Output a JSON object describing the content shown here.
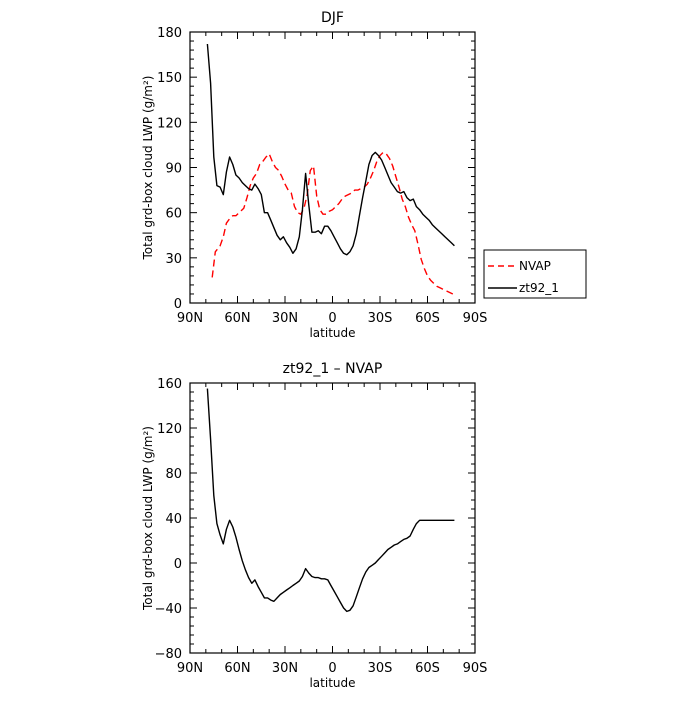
{
  "chart_data": [
    {
      "type": "line",
      "title": "DJF",
      "xlabel": "latitude",
      "ylabel": "Total grd-box cloud LWP (g/m²)",
      "xlim": [
        90,
        -90
      ],
      "ylim": [
        0,
        180
      ],
      "x_ticks": [
        90,
        60,
        30,
        0,
        -30,
        -60,
        -90
      ],
      "x_tick_labels": [
        "90N",
        "60N",
        "30N",
        "0",
        "30S",
        "60S",
        "90S"
      ],
      "y_ticks": [
        0,
        30,
        60,
        90,
        120,
        150,
        180
      ],
      "y_tick_labels": [
        "0",
        "30",
        "60",
        "90",
        "120",
        "150",
        "180"
      ],
      "legend_position": "right",
      "series": [
        {
          "name": "NVAP",
          "color": "#ff0000",
          "style": "dashed",
          "x": [
            76,
            74,
            71,
            69,
            67,
            65,
            63,
            61,
            59,
            56,
            54,
            52,
            50,
            48,
            46,
            44,
            42,
            40,
            38,
            36,
            34,
            32,
            30,
            28,
            26,
            24,
            22,
            20,
            18,
            16,
            14,
            12,
            10,
            8,
            6,
            4,
            2,
            0,
            -2,
            -4,
            -6,
            -8,
            -10,
            -12,
            -14,
            -16,
            -18,
            -20,
            -22,
            -24,
            -26,
            -28,
            -30,
            -32,
            -34,
            -36,
            -38,
            -40,
            -42,
            -44,
            -46,
            -48,
            -50,
            -52,
            -54,
            -56,
            -58,
            -60,
            -62,
            -64,
            -66,
            -68,
            -70,
            -72,
            -74,
            -76
          ],
          "values": [
            17,
            34,
            38,
            44,
            53,
            56,
            58,
            58,
            60,
            63,
            70,
            78,
            83,
            86,
            92,
            94,
            97,
            99,
            94,
            90,
            88,
            84,
            79,
            75,
            73,
            64,
            60,
            59,
            63,
            72,
            88,
            91,
            71,
            62,
            59,
            59,
            61,
            62,
            64,
            66,
            69,
            71,
            72,
            73,
            75,
            75,
            76,
            77,
            79,
            83,
            88,
            94,
            98,
            100,
            99,
            96,
            91,
            84,
            77,
            69,
            64,
            57,
            52,
            48,
            39,
            29,
            23,
            18,
            15,
            13,
            11,
            10,
            9,
            8,
            7,
            6
          ]
        },
        {
          "name": "zt92_1",
          "color": "#000000",
          "style": "solid",
          "x": [
            79,
            77,
            75,
            73,
            71,
            69,
            67,
            65,
            63,
            61,
            59,
            57,
            55,
            53,
            51,
            49,
            47,
            45,
            43,
            41,
            39,
            37,
            35,
            33,
            31,
            29,
            27,
            25,
            23,
            21,
            19,
            17,
            15,
            13,
            11,
            9,
            7,
            5,
            3,
            1,
            -1,
            -3,
            -5,
            -7,
            -9,
            -11,
            -13,
            -15,
            -17,
            -19,
            -21,
            -23,
            -25,
            -27,
            -29,
            -31,
            -33,
            -35,
            -37,
            -39,
            -41,
            -43,
            -45,
            -47,
            -49,
            -51,
            -53,
            -55,
            -57,
            -59,
            -61,
            -63,
            -65,
            -67,
            -69,
            -71,
            -73,
            -75,
            -77
          ],
          "values": [
            172,
            146,
            97,
            78,
            77,
            72,
            87,
            97,
            92,
            85,
            83,
            80,
            78,
            76,
            75,
            79,
            76,
            72,
            60,
            60,
            55,
            50,
            45,
            42,
            44,
            40,
            37,
            33,
            36,
            44,
            62,
            86,
            65,
            47,
            47,
            48,
            46,
            51,
            51,
            48,
            44,
            40,
            36,
            33,
            32,
            34,
            38,
            46,
            58,
            70,
            81,
            92,
            98,
            100,
            98,
            95,
            90,
            85,
            80,
            77,
            74,
            73,
            74,
            70,
            68,
            69,
            64,
            62,
            59,
            57,
            55,
            52,
            50,
            48,
            46,
            44,
            42,
            40,
            38
          ]
        }
      ]
    },
    {
      "type": "line",
      "title": "zt92_1 – NVAP",
      "xlabel": "latitude",
      "ylabel": "Total grd-box cloud LWP (g/m²)",
      "xlim": [
        90,
        -90
      ],
      "ylim": [
        -80,
        160
      ],
      "x_ticks": [
        90,
        60,
        30,
        0,
        -30,
        -60,
        -90
      ],
      "x_tick_labels": [
        "90N",
        "60N",
        "30N",
        "0",
        "30S",
        "60S",
        "90S"
      ],
      "y_ticks": [
        -80,
        -40,
        0,
        40,
        80,
        120,
        160
      ],
      "y_tick_labels": [
        "−80",
        "−40",
        "0",
        "40",
        "80",
        "120",
        "160"
      ],
      "series": [
        {
          "name": "",
          "color": "#000000",
          "style": "solid",
          "x": [
            79,
            77,
            75,
            73,
            71,
            69,
            67,
            65,
            63,
            61,
            59,
            57,
            55,
            53,
            51,
            49,
            47,
            45,
            43,
            41,
            39,
            37,
            35,
            33,
            31,
            29,
            27,
            25,
            23,
            21,
            19,
            17,
            15,
            13,
            11,
            9,
            7,
            5,
            3,
            1,
            -1,
            -3,
            -5,
            -7,
            -9,
            -11,
            -13,
            -15,
            -17,
            -19,
            -21,
            -23,
            -25,
            -27,
            -29,
            -31,
            -33,
            -35,
            -37,
            -39,
            -41,
            -43,
            -45,
            -47,
            -49,
            -51,
            -53,
            -55,
            -57,
            -59,
            -61,
            -63,
            -65,
            -67,
            -69,
            -71,
            -73,
            -75,
            -77
          ],
          "values": [
            155,
            110,
            60,
            35,
            25,
            17,
            30,
            38,
            32,
            23,
            12,
            2,
            -6,
            -13,
            -18,
            -15,
            -21,
            -26,
            -31,
            -31,
            -33,
            -34,
            -31,
            -28,
            -26,
            -24,
            -22,
            -20,
            -18,
            -16,
            -12,
            -5,
            -9,
            -12,
            -13,
            -13,
            -14,
            -14,
            -15,
            -20,
            -25,
            -30,
            -35,
            -40,
            -43,
            -42,
            -38,
            -30,
            -22,
            -14,
            -8,
            -4,
            -2,
            0,
            3,
            6,
            9,
            12,
            14,
            16,
            17,
            19,
            21,
            22,
            24,
            30,
            35,
            38,
            38,
            38,
            38,
            38,
            38,
            38,
            38,
            38,
            38,
            38,
            38
          ]
        }
      ]
    }
  ]
}
